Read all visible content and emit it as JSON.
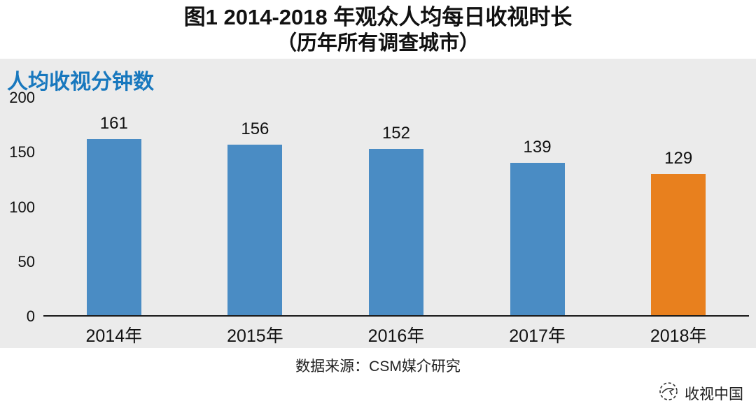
{
  "title": {
    "line1": "图1 2014-2018 年观众人均每日收视时长",
    "line2": "（历年所有调查城市）"
  },
  "chart_data": {
    "type": "bar",
    "title": "图1 2014-2018 年观众人均每日收视时长（历年所有调查城市）",
    "ylabel": "人均收视分钟数",
    "xlabel": "",
    "categories": [
      "2014年",
      "2015年",
      "2016年",
      "2017年",
      "2018年"
    ],
    "values": [
      161,
      156,
      152,
      139,
      129
    ],
    "yticks": [
      200,
      150,
      100,
      50,
      0
    ],
    "ylim": [
      0,
      200
    ],
    "grid": false,
    "legend": "none",
    "value_labels": true,
    "bar_colors": [
      "#4a8cc4",
      "#4a8cc4",
      "#4a8cc4",
      "#4a8cc4",
      "#e8801e"
    ]
  },
  "source": "数据来源：CSM媒介研究",
  "watermark": {
    "label": "收视中国",
    "icon": "csm-globe-logo"
  },
  "colors": {
    "bar_blue": "#4a8cc4",
    "bar_orange": "#e8801e",
    "label_blue": "#1878be",
    "panel_bg": "#ebebeb"
  }
}
